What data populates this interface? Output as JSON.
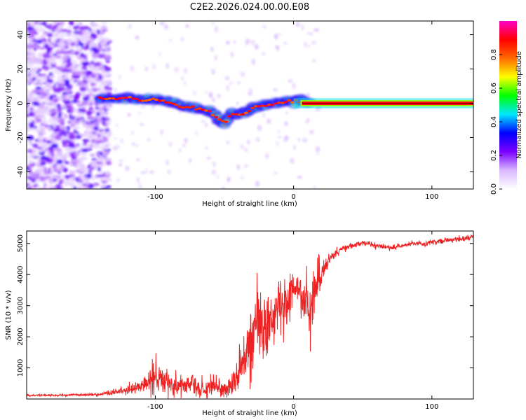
{
  "chart_data": [
    {
      "type": "heatmap",
      "title": "C2E2.2026.024.00.00.E08",
      "xlabel": "Height of straight line (km)",
      "ylabel": "Frequency (Hz)",
      "xlim": [
        -193,
        130
      ],
      "ylim": [
        -50,
        48
      ],
      "xticks": [
        -100,
        0,
        100
      ],
      "xtick_labels": [
        "-100",
        "0",
        "100"
      ],
      "yticks": [
        -40,
        -20,
        0,
        20,
        40
      ],
      "ytick_labels": [
        "-40",
        "-20",
        "0",
        "20",
        "40"
      ],
      "colorbar": {
        "label": "Normalized spectral amplitude",
        "range": [
          0,
          1
        ],
        "ticks": [
          0.0,
          0.2,
          0.4,
          0.6,
          0.8
        ],
        "tick_labels": [
          "0.0",
          "0.2",
          "0.4",
          "0.6",
          "0.8"
        ],
        "colors": [
          "#ffffff",
          "#d9b8ff",
          "#7a00ff",
          "#0000ff",
          "#00e8ff",
          "#00ff00",
          "#ffff00",
          "#ff6a00",
          "#ff0000",
          "#ff00c8"
        ]
      },
      "ridge": {
        "x": [
          -140,
          -130,
          -120,
          -110,
          -100,
          -90,
          -80,
          -70,
          -60,
          -55,
          -50,
          -45,
          -40,
          -35,
          -30,
          -25,
          -20,
          -15,
          -10,
          -5,
          0,
          5,
          10,
          130
        ],
        "y": [
          3,
          3,
          3,
          2,
          2,
          1,
          -2,
          -3,
          -5,
          -9,
          -12,
          -6,
          -7,
          -6,
          -3,
          -2,
          -1,
          0,
          0,
          1,
          1,
          2,
          0,
          0
        ]
      },
      "scatter_region": {
        "x_range": [
          -193,
          -133
        ],
        "y_range": [
          -50,
          48
        ]
      }
    },
    {
      "type": "line",
      "xlabel": "Height of straight line (km)",
      "ylabel": "SNR (10 * v/v)",
      "xlim": [
        -193,
        130
      ],
      "ylim": [
        0,
        5400
      ],
      "xticks": [
        -100,
        0,
        100
      ],
      "xtick_labels": [
        "-100",
        "0",
        "100"
      ],
      "yticks": [
        1000,
        2000,
        3000,
        4000,
        5000
      ],
      "ytick_labels": [
        "1000",
        "2000",
        "3000",
        "4000",
        "5000"
      ],
      "series": [
        {
          "name": "SNR",
          "color": "#ee2222",
          "x": [
            -193,
            -180,
            -170,
            -160,
            -150,
            -140,
            -130,
            -120,
            -110,
            -105,
            -100,
            -96,
            -92,
            -88,
            -84,
            -80,
            -76,
            -72,
            -68,
            -64,
            -60,
            -56,
            -52,
            -48,
            -44,
            -40,
            -36,
            -32,
            -28,
            -24,
            -20,
            -16,
            -12,
            -8,
            -4,
            0,
            4,
            8,
            12,
            16,
            20,
            24,
            28,
            32,
            36,
            40,
            45,
            50,
            55,
            60,
            65,
            70,
            75,
            80,
            85,
            90,
            95,
            100,
            105,
            110,
            115,
            120,
            125,
            130
          ],
          "y": [
            120,
            120,
            120,
            130,
            140,
            150,
            220,
            300,
            400,
            500,
            800,
            700,
            600,
            500,
            450,
            400,
            500,
            450,
            350,
            300,
            400,
            350,
            300,
            300,
            500,
            800,
            1200,
            1800,
            2200,
            2600,
            2300,
            2500,
            3000,
            2800,
            3200,
            3600,
            3500,
            3200,
            2800,
            3500,
            4100,
            4400,
            4600,
            4750,
            4850,
            4900,
            4950,
            5000,
            5000,
            4900,
            4900,
            4850,
            4900,
            4950,
            5000,
            5000,
            5000,
            5050,
            5050,
            5100,
            5100,
            5150,
            5150,
            5200
          ],
          "noise": [
            30,
            30,
            30,
            30,
            40,
            50,
            80,
            120,
            200,
            300,
            600,
            500,
            400,
            300,
            300,
            250,
            300,
            300,
            250,
            200,
            300,
            300,
            250,
            200,
            350,
            500,
            700,
            900,
            1000,
            1000,
            900,
            900,
            700,
            800,
            700,
            500,
            500,
            700,
            900,
            700,
            400,
            250,
            150,
            100,
            80,
            80,
            70,
            70,
            70,
            70,
            70,
            70,
            70,
            70,
            70,
            70,
            70,
            70,
            70,
            70,
            70,
            70,
            70,
            70
          ]
        }
      ]
    }
  ]
}
